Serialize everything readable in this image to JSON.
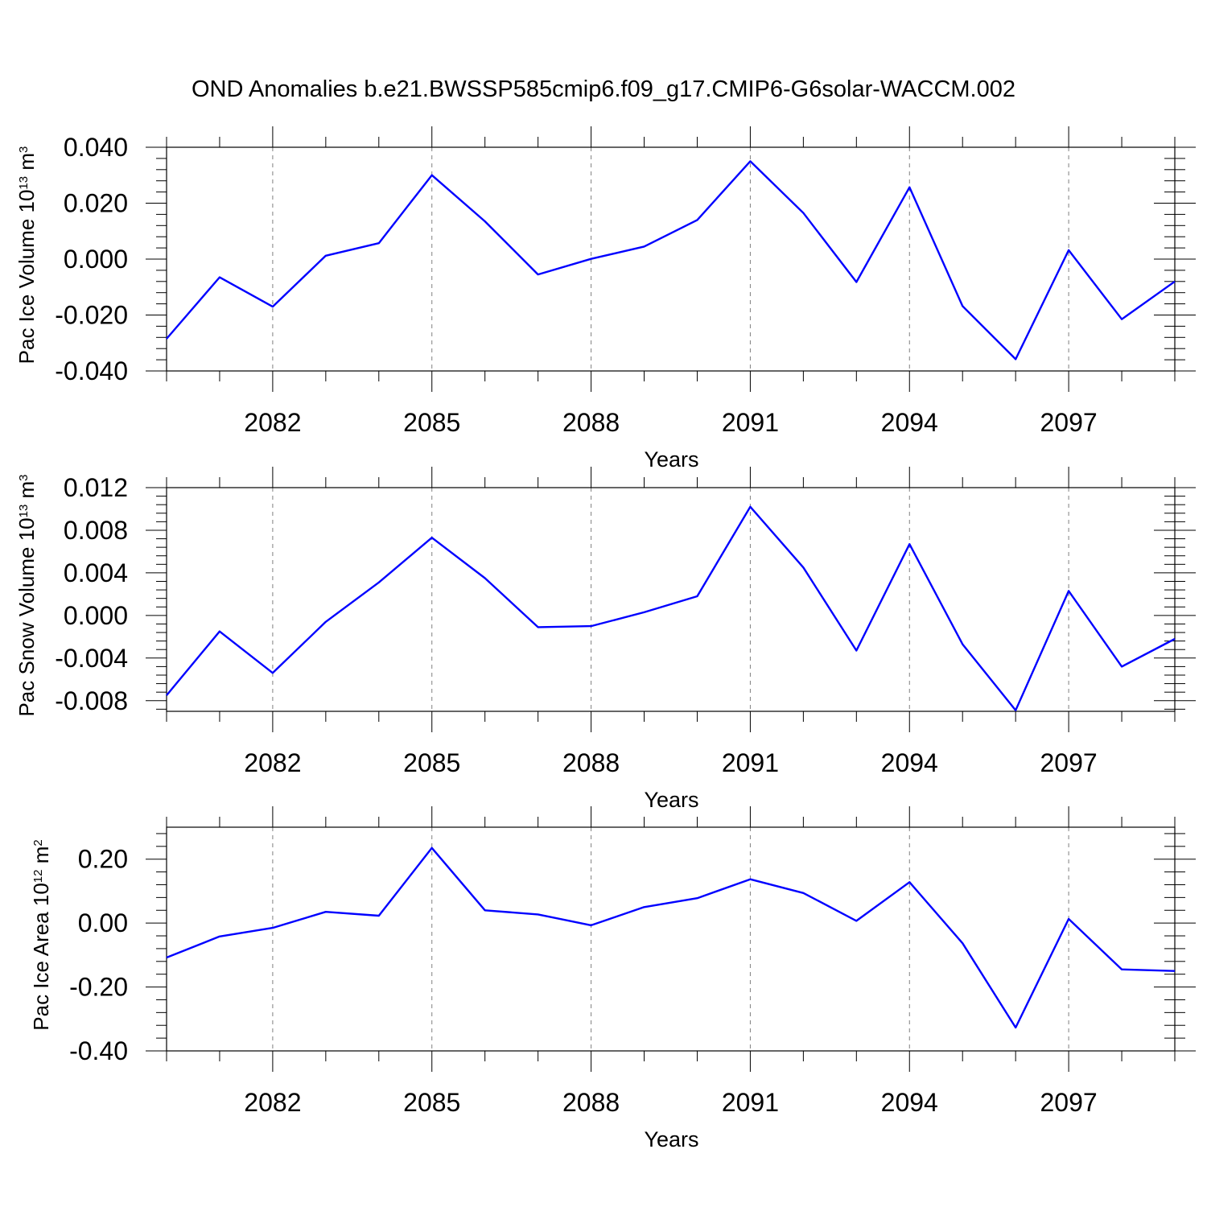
{
  "figure": {
    "title": "OND Anomalies b.e21.BWSSP585cmip6.f09_g17.CMIP6-G6solar-WACCM.002",
    "line_color": "#0000ff",
    "grid_color": "#808080"
  },
  "chart_data": [
    {
      "type": "line",
      "ylabel": {
        "text": "Pac Ice Volume 10",
        "exp": "13",
        "unit": " m",
        "unit_exp": "3"
      },
      "xlabel": "Years",
      "xlim": [
        2080,
        2099
      ],
      "ylim": [
        -0.04,
        0.04
      ],
      "yticks": [
        -0.04,
        -0.02,
        0.0,
        0.02,
        0.04
      ],
      "ytick_labels": [
        "-0.040",
        "-0.020",
        "0.000",
        "0.020",
        "0.040"
      ],
      "xticks": [
        2082,
        2085,
        2088,
        2091,
        2094,
        2097
      ],
      "xtick_labels": [
        "2082",
        "2085",
        "2088",
        "2091",
        "2094",
        "2097"
      ],
      "x": [
        2080,
        2081,
        2082,
        2083,
        2084,
        2085,
        2086,
        2087,
        2088,
        2089,
        2090,
        2091,
        2092,
        2093,
        2094,
        2095,
        2096,
        2097,
        2098,
        2099
      ],
      "series": [
        {
          "values": [
            -0.0285,
            -0.0065,
            -0.017,
            0.0012,
            0.0057,
            0.03,
            0.0135,
            -0.0055,
            0.0001,
            0.0045,
            0.014,
            0.035,
            0.0165,
            -0.0082,
            0.0257,
            -0.0168,
            -0.0358,
            0.0032,
            -0.0215,
            -0.008
          ]
        }
      ]
    },
    {
      "type": "line",
      "ylabel": {
        "text": "Pac Snow Volume 10",
        "exp": "13",
        "unit": " m",
        "unit_exp": "3"
      },
      "xlabel": "Years",
      "xlim": [
        2080,
        2099
      ],
      "ylim": [
        -0.009,
        0.012
      ],
      "yticks": [
        -0.008,
        -0.004,
        0.0,
        0.004,
        0.008,
        0.012
      ],
      "ytick_labels": [
        "-0.008",
        "-0.004",
        "0.000",
        "0.004",
        "0.008",
        "0.012"
      ],
      "xticks": [
        2082,
        2085,
        2088,
        2091,
        2094,
        2097
      ],
      "xtick_labels": [
        "2082",
        "2085",
        "2088",
        "2091",
        "2094",
        "2097"
      ],
      "x": [
        2080,
        2081,
        2082,
        2083,
        2084,
        2085,
        2086,
        2087,
        2088,
        2089,
        2090,
        2091,
        2092,
        2093,
        2094,
        2095,
        2096,
        2097,
        2098,
        2099
      ],
      "series": [
        {
          "values": [
            -0.0075,
            -0.0015,
            -0.0054,
            -0.0006,
            0.0031,
            0.0073,
            0.0035,
            -0.0011,
            -0.001,
            0.0003,
            0.0018,
            0.0102,
            0.0045,
            -0.0033,
            0.0067,
            -0.0027,
            -0.0089,
            0.0023,
            -0.0048,
            -0.0022
          ]
        }
      ]
    },
    {
      "type": "line",
      "ylabel": {
        "text": "Pac Ice Area 10",
        "exp": "12",
        "unit": " m",
        "unit_exp": "2"
      },
      "xlabel": "Years",
      "xlim": [
        2080,
        2099
      ],
      "ylim": [
        -0.4,
        0.3
      ],
      "yticks": [
        -0.4,
        -0.2,
        0.0,
        0.2
      ],
      "ytick_labels": [
        "-0.40",
        "-0.20",
        "0.00",
        "0.20"
      ],
      "xticks": [
        2082,
        2085,
        2088,
        2091,
        2094,
        2097
      ],
      "xtick_labels": [
        "2082",
        "2085",
        "2088",
        "2091",
        "2094",
        "2097"
      ],
      "x": [
        2080,
        2081,
        2082,
        2083,
        2084,
        2085,
        2086,
        2087,
        2088,
        2089,
        2090,
        2091,
        2092,
        2093,
        2094,
        2095,
        2096,
        2097,
        2098,
        2099
      ],
      "series": [
        {
          "values": [
            -0.108,
            -0.042,
            -0.015,
            0.035,
            0.023,
            0.235,
            0.04,
            0.027,
            -0.007,
            0.05,
            0.078,
            0.137,
            0.094,
            0.007,
            0.128,
            -0.063,
            -0.327,
            0.013,
            -0.145,
            -0.15
          ]
        }
      ]
    }
  ]
}
